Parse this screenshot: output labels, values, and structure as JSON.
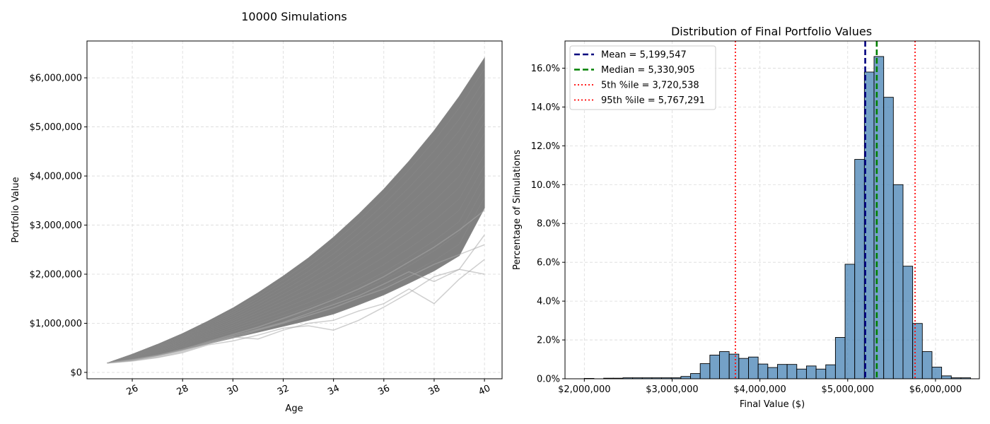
{
  "figure_title": "10000 Simulations",
  "chart_data": [
    {
      "type": "line",
      "title": "",
      "xlabel": "Age",
      "ylabel": "Portfolio Value",
      "xlim": [
        24.2,
        40.7
      ],
      "ylim": [
        -130000,
        6750000
      ],
      "xticks": [
        26,
        28,
        30,
        32,
        34,
        36,
        38,
        40
      ],
      "xtick_labels": [
        "26",
        "28",
        "30",
        "32",
        "34",
        "36",
        "38",
        "40"
      ],
      "yticks": [
        0,
        1000000,
        2000000,
        3000000,
        4000000,
        5000000,
        6000000
      ],
      "ytick_labels": [
        "$0",
        "$1,000,000",
        "$2,000,000",
        "$3,000,000",
        "$4,000,000",
        "$5,000,000",
        "$6,000,000"
      ],
      "grid": true,
      "series_color": "#808080",
      "x": [
        25,
        26,
        27,
        28,
        29,
        30,
        31,
        32,
        33,
        34,
        35,
        36,
        37,
        38,
        39,
        40
      ],
      "envelope": {
        "upper": [
          190000,
          370000,
          570000,
          790000,
          1040000,
          1310000,
          1620000,
          1960000,
          2330000,
          2750000,
          3220000,
          3730000,
          4300000,
          4920000,
          5620000,
          6400000
        ],
        "lower": [
          190000,
          250000,
          340000,
          460000,
          580000,
          700000,
          820000,
          940000,
          1060000,
          1190000,
          1380000,
          1580000,
          1820000,
          2070000,
          2380000,
          3350000
        ]
      },
      "series": [
        {
          "values": [
            190000,
            230000,
            300000,
            400000,
            560000,
            640000,
            760000,
            900000,
            950000,
            860000,
            1060000,
            1330000,
            1620000,
            1950000,
            2100000,
            2000000
          ]
        },
        {
          "values": [
            190000,
            240000,
            310000,
            420000,
            580000,
            720000,
            680000,
            860000,
            1000000,
            1060000,
            1250000,
            1400000,
            1700000,
            1400000,
            1900000,
            2300000
          ]
        },
        {
          "values": [
            190000,
            250000,
            330000,
            440000,
            590000,
            700000,
            860000,
            1000000,
            1160000,
            1320000,
            1520000,
            1700000,
            1950000,
            2200000,
            2400000,
            2600000
          ]
        },
        {
          "values": [
            190000,
            250000,
            340000,
            450000,
            600000,
            740000,
            880000,
            1020000,
            1200000,
            1380000,
            1560000,
            1800000,
            2050000,
            1850000,
            2100000,
            2800000
          ]
        },
        {
          "values": [
            190000,
            260000,
            350000,
            470000,
            620000,
            770000,
            920000,
            1100000,
            1280000,
            1480000,
            1700000,
            1950000,
            2250000,
            2550000,
            2900000,
            3300000
          ]
        }
      ]
    },
    {
      "type": "bar",
      "title": "Distribution of Final Portfolio Values",
      "xlabel": "Final Value ($)",
      "ylabel": "Percentage of Simulations",
      "xlim": [
        1780000,
        6500000
      ],
      "ylim": [
        0,
        17.4
      ],
      "xticks": [
        2000000,
        3000000,
        4000000,
        5000000,
        6000000
      ],
      "xtick_labels": [
        "$2,000,000",
        "$3,000,000",
        "$4,000,000",
        "$5,000,000",
        "$6,000,000"
      ],
      "yticks": [
        0,
        2,
        4,
        6,
        8,
        10,
        12,
        14,
        16
      ],
      "ytick_labels": [
        "0.0%",
        "2.0%",
        "4.0%",
        "6.0%",
        "8.0%",
        "10.0%",
        "12.0%",
        "14.0%",
        "16.0%"
      ],
      "grid": true,
      "legend_position": "upper left",
      "bar_color": "#4682b4",
      "bin_start": 2000000,
      "bin_width": 110000,
      "values": [
        0.02,
        0,
        0.03,
        0.03,
        0.05,
        0.05,
        0.05,
        0.05,
        0.05,
        0.05,
        0.12,
        0.27,
        0.78,
        1.22,
        1.4,
        1.27,
        1.05,
        1.12,
        0.76,
        0.58,
        0.74,
        0.74,
        0.5,
        0.66,
        0.5,
        0.72,
        2.13,
        5.9,
        11.3,
        15.8,
        16.6,
        14.5,
        10.0,
        5.8,
        2.85,
        1.4,
        0.6,
        0.15,
        0.05,
        0.05
      ],
      "lines": [
        {
          "label": "Mean = 5,199,547",
          "value": 5199547,
          "color": "#00007f",
          "style": "dashed"
        },
        {
          "label": "Median = 5,330,905",
          "value": 5330905,
          "color": "#008000",
          "style": "dashed"
        },
        {
          "label": "5th %ile = 3,720,538",
          "value": 3720538,
          "color": "#ff0000",
          "style": "dotted"
        },
        {
          "label": "95th %ile = 5,767,291",
          "value": 5767291,
          "color": "#ff0000",
          "style": "dotted"
        }
      ]
    }
  ]
}
